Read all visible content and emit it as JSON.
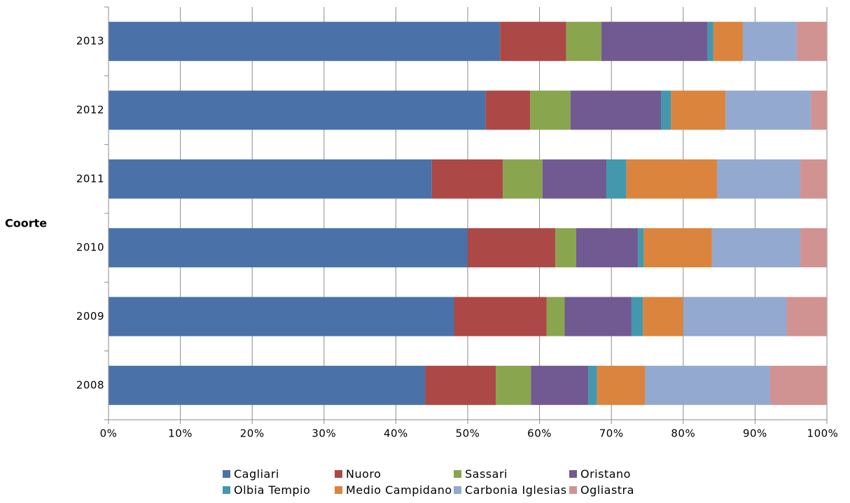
{
  "chart_data": {
    "type": "bar",
    "orientation": "horizontal",
    "stacked": "percent",
    "title": "",
    "xlabel": "",
    "ylabel": "Coorte",
    "categories": [
      "2013",
      "2012",
      "2011",
      "2010",
      "2009",
      "2008"
    ],
    "xlim": [
      0,
      100
    ],
    "x_ticks": [
      "0%",
      "10%",
      "20%",
      "30%",
      "40%",
      "50%",
      "60%",
      "70%",
      "80%",
      "90%",
      "100%"
    ],
    "grid": "vertical",
    "legend_position": "bottom",
    "series": [
      {
        "name": "Cagliari",
        "color": "#4A72A8",
        "values": [
          54.5,
          52.5,
          45.0,
          50.0,
          48.1,
          44.1
        ]
      },
      {
        "name": "Nuoro",
        "color": "#AC4846",
        "values": [
          9.2,
          6.2,
          9.9,
          12.2,
          12.9,
          9.8
        ]
      },
      {
        "name": "Sassari",
        "color": "#89A54E",
        "values": [
          4.9,
          5.6,
          5.5,
          2.9,
          2.5,
          4.9
        ]
      },
      {
        "name": "Oristano",
        "color": "#715A92",
        "values": [
          14.8,
          12.6,
          8.9,
          8.6,
          9.3,
          8.0
        ]
      },
      {
        "name": "Olbia Tempio",
        "color": "#4398AE",
        "values": [
          0.8,
          1.4,
          2.8,
          0.8,
          1.6,
          1.2
        ]
      },
      {
        "name": "Medio Campidano",
        "color": "#DB843D",
        "values": [
          4.1,
          7.6,
          12.6,
          9.5,
          5.6,
          6.7
        ]
      },
      {
        "name": "Carbonia Iglesias",
        "color": "#93A9CF",
        "values": [
          7.5,
          11.9,
          11.6,
          12.3,
          14.4,
          17.4
        ]
      },
      {
        "name": "Ogliastra",
        "color": "#D09392",
        "values": [
          4.2,
          2.2,
          3.7,
          3.7,
          5.6,
          7.9
        ]
      }
    ]
  }
}
